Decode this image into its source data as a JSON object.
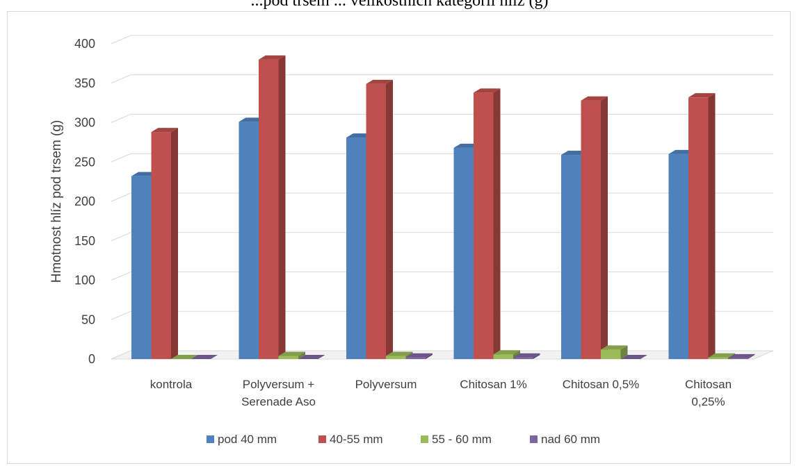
{
  "title_partial": "...pod trsem ... velikostních kategorií hlíz (g)",
  "chart_data": {
    "type": "bar",
    "style": "3d-clustered-column",
    "title": "",
    "xlabel": "",
    "ylabel": "Hmotnost hlíz pod trsem (g)",
    "ylim": [
      0,
      400
    ],
    "yticks": [
      0,
      50,
      100,
      150,
      200,
      250,
      300,
      350,
      400
    ],
    "grid": true,
    "legend_position": "bottom",
    "categories": [
      [
        "kontrola"
      ],
      [
        "Polyversum +",
        "Serenade Aso"
      ],
      [
        "Polyversum"
      ],
      [
        "Chitosan 1%"
      ],
      [
        "Chitosan 0,5%"
      ],
      [
        "Chitosan",
        "0,25%"
      ]
    ],
    "series": [
      {
        "name": "pod 40 mm",
        "color": "#4f81bd",
        "values": [
          232,
          301,
          281,
          268,
          259,
          260
        ]
      },
      {
        "name": "40-55 mm",
        "color": "#c0504d",
        "values": [
          288,
          380,
          349,
          338,
          328,
          332
        ]
      },
      {
        "name": "55 - 60 mm",
        "color": "#9bbb59",
        "values": [
          0,
          4,
          4,
          6,
          12,
          2
        ]
      },
      {
        "name": "nad 60 mm",
        "color": "#8064a2",
        "values": [
          0,
          0,
          2,
          2,
          0,
          1
        ]
      }
    ]
  }
}
